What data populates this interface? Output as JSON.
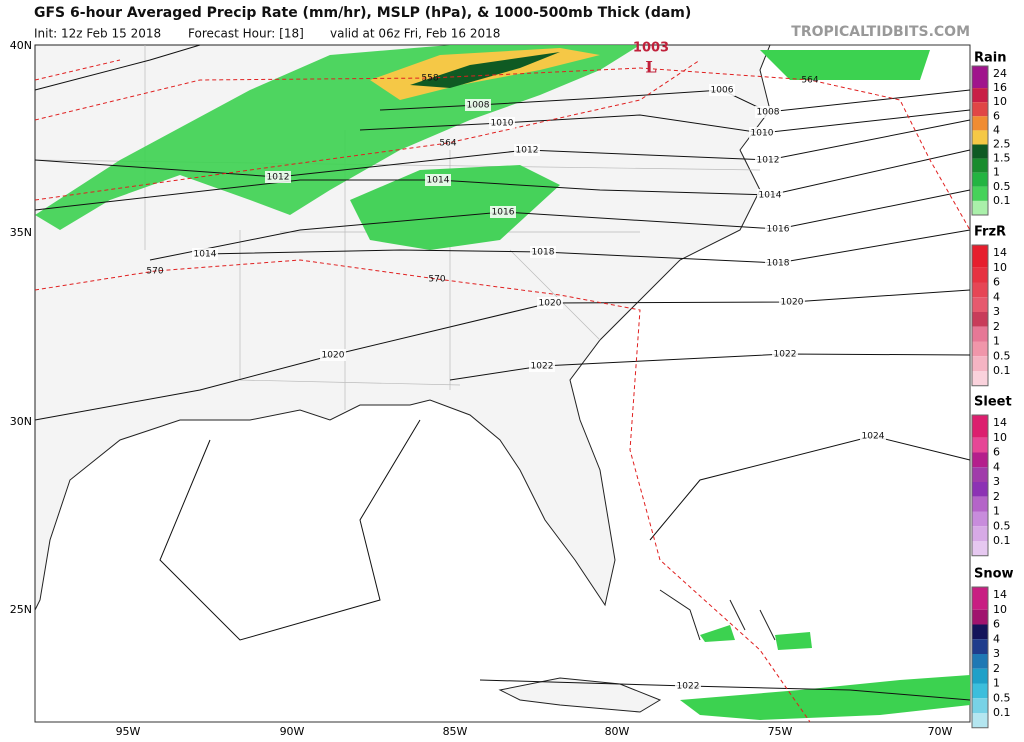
{
  "header": {
    "title": "GFS 6-hour Averaged Precip Rate (mm/hr), MSLP (hPa), & 1000-500mb Thick (dam)",
    "init": "Init: 12z Feb 15 2018",
    "forecast_hour": "Forecast Hour: [18]",
    "valid": "valid at 06z Fri, Feb 16 2018",
    "source": "TROPICALTIDBITS.COM"
  },
  "map": {
    "lon_labels": [
      "95W",
      "90W",
      "85W",
      "80W",
      "75W",
      "70W"
    ],
    "lat_labels": [
      "40N",
      "35N",
      "30N",
      "25N"
    ],
    "low": {
      "pressure": "1003",
      "symbol": "L"
    },
    "isobar_labels": [
      "1006",
      "1008",
      "1008",
      "1010",
      "1010",
      "1012",
      "1012",
      "1012",
      "1014",
      "1014",
      "1016",
      "1016",
      "1018",
      "1018",
      "1014",
      "1020",
      "1020",
      "1020",
      "1022",
      "1022",
      "1024",
      "1022"
    ],
    "thickness_labels": [
      "564",
      "564",
      "570",
      "570",
      "558"
    ]
  },
  "legends": [
    {
      "title": "Rain",
      "ticks": [
        24,
        16,
        10,
        6,
        4,
        2.5,
        1.5,
        1,
        0.5,
        0.1
      ],
      "colors": [
        "#a0148c",
        "#c81e46",
        "#e04646",
        "#f08c32",
        "#f5c846",
        "#0f5a23",
        "#198c2d",
        "#23b441",
        "#46d25a",
        "#aaf0aa"
      ]
    },
    {
      "title": "FrzR",
      "ticks": [
        14,
        10,
        6,
        4,
        3,
        2,
        1,
        0.5,
        0.1
      ],
      "colors": [
        "#e61e2d",
        "#e63241",
        "#e64655",
        "#e65a6e",
        "#c83c5a",
        "#e67896",
        "#f096aa",
        "#f5b4c3",
        "#fad2dc"
      ]
    },
    {
      "title": "Sleet",
      "ticks": [
        14,
        10,
        6,
        4,
        3,
        2,
        1,
        0.5,
        0.1
      ],
      "colors": [
        "#dc1e6e",
        "#e64696",
        "#b41e8c",
        "#a03caa",
        "#8c32b4",
        "#b464c8",
        "#c88cdc",
        "#d7aae6",
        "#e6c8f0"
      ]
    },
    {
      "title": "Snow",
      "ticks": [
        14,
        10,
        6,
        4,
        3,
        2,
        1,
        0.5,
        0.1
      ],
      "colors": [
        "#c81e82",
        "#a0146e",
        "#14145a",
        "#1e3c8c",
        "#1e78b4",
        "#1ea0c8",
        "#3cbedc",
        "#78d2e6",
        "#b4e6f0"
      ]
    }
  ]
}
